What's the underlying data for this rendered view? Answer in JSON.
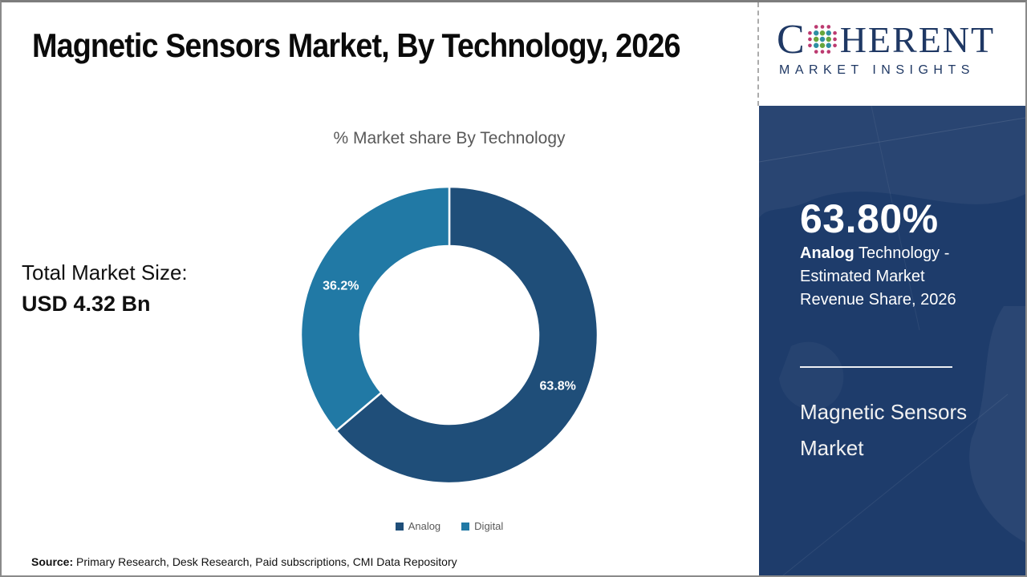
{
  "frame": {
    "bg": "#ffffff",
    "border_color": "#8a8a8a"
  },
  "header": {
    "title": "Magnetic Sensors Market, By Technology, 2026"
  },
  "logo": {
    "brand_prefix": "C",
    "brand_suffix": "HERENT",
    "brand_subtitle": "MARKET INSIGHTS",
    "navy": "#1F3864",
    "dot_teal": "#2E8FA3",
    "dot_green": "#67A63C",
    "dot_magenta": "#BC3A70"
  },
  "chart_data": {
    "type": "pie",
    "style": "donut",
    "title": "% Market share By Technology",
    "categories": [
      "Analog",
      "Digital"
    ],
    "values": [
      63.8,
      36.2
    ],
    "data_labels": [
      "63.8%",
      "36.2%"
    ],
    "colors": [
      "#1F4E79",
      "#2179A5"
    ],
    "start_angle_deg": 0,
    "direction": "clockwise",
    "inner_radius_ratio": 0.6,
    "legend_position": "bottom"
  },
  "summary": {
    "market_size_label": "Total Market Size:",
    "market_size_value": "USD 4.32 Bn"
  },
  "sidebar": {
    "bg": "#1E3C6B",
    "highlight_value": "63.80%",
    "highlight_term": "Analog",
    "highlight_rest": "Technology - Estimated Market Revenue Share, 2026",
    "report_title": "Magnetic Sensors Market"
  },
  "footer": {
    "source_label": "Source:",
    "source_text": "Primary Research, Desk Research, Paid subscriptions, CMI Data Repository"
  }
}
